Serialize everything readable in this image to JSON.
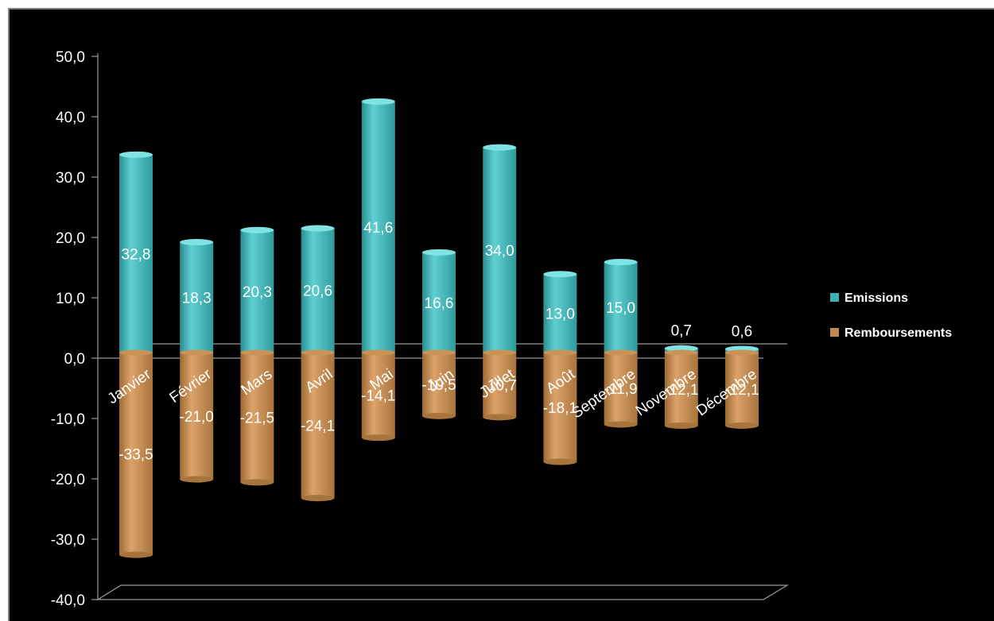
{
  "chart_data": {
    "type": "bar",
    "stacked": true,
    "three_d": true,
    "categories": [
      "Janvier",
      "Février",
      "Mars",
      "Avril",
      "Mai",
      "Juin",
      "Juillet",
      "Août",
      "Septembre",
      "Novembre",
      "Décembre"
    ],
    "series": [
      {
        "name": "Emissions",
        "color": "#3bb3b5",
        "values": [
          32.8,
          18.3,
          20.3,
          20.6,
          41.6,
          16.6,
          34.0,
          13.0,
          15.0,
          0.7,
          0.6
        ],
        "labels": [
          "32,8",
          "18,3",
          "20,3",
          "20,6",
          "41,6",
          "16,6",
          "34,0",
          "13,0",
          "15,0",
          "0,7",
          "0,6"
        ]
      },
      {
        "name": "Remboursements",
        "color": "#c08a4e",
        "values": [
          -33.5,
          -21.0,
          -21.5,
          -24.1,
          -14.1,
          -10.5,
          -10.7,
          -18.1,
          -11.9,
          -12.1,
          -12.1
        ],
        "labels": [
          "-33,5",
          "-21,0",
          "-21,5",
          "-24,1",
          "-14,1",
          "-10,5",
          "-10,7",
          "-18,1",
          "-11,9",
          "-12,1",
          "-12,1"
        ]
      }
    ],
    "ylim": [
      -40,
      50
    ],
    "yticks": [
      50,
      40,
      30,
      20,
      10,
      0,
      -10,
      -20,
      -30,
      -40
    ],
    "ytick_labels": [
      "50,0",
      "40,0",
      "30,0",
      "20,0",
      "10,0",
      "0,0",
      "-10,0",
      "-20,0",
      "-30,0",
      "-40,0"
    ],
    "legend_position": "right",
    "grid": false,
    "background": "#000000"
  }
}
